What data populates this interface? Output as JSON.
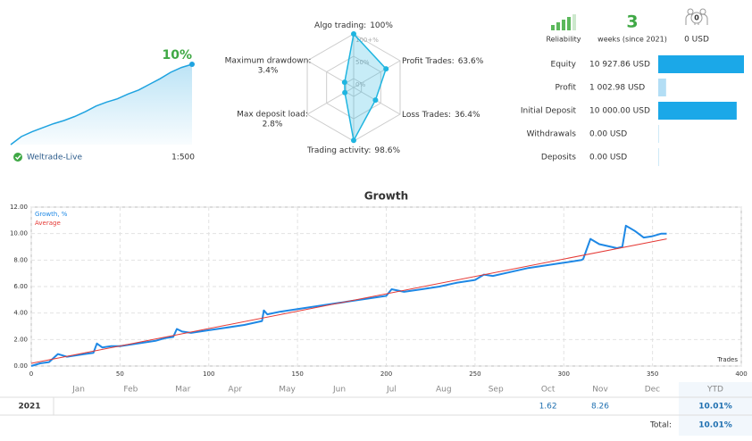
{
  "header": {
    "account": "Weltrade-Live",
    "leverage": "1:500",
    "reliability_label": "Reliability",
    "weeks": "3",
    "weeks_label": "weeks (since 2021)",
    "subscribers": "0",
    "subscribers_funds": "0 USD"
  },
  "chart_data": [
    {
      "type": "area",
      "end_label": "10%",
      "color": "#1fa3e0",
      "values": [
        0,
        1.0,
        1.6,
        2.1,
        2.6,
        3.0,
        3.5,
        4.1,
        4.8,
        5.3,
        5.7,
        6.3,
        6.8,
        7.5,
        8.2,
        9.0,
        9.6,
        10
      ]
    },
    {
      "type": "radar",
      "color": "#1fb5e0",
      "categories": [
        "Algo trading:",
        "Profit Trades:",
        "Loss Trades:",
        "Trading activity:",
        "Max deposit load:",
        "Maximum drawdown:"
      ],
      "values": [
        100,
        63.6,
        36.4,
        98.6,
        2.8,
        3.4
      ],
      "value_labels": [
        "100%",
        "63.6%",
        "36.4%",
        "98.6%",
        "2.8%",
        "3.4%"
      ],
      "rticks": [
        {
          "value": 0,
          "label": "0%"
        },
        {
          "value": 50,
          "label": "50%"
        },
        {
          "value": 100,
          "label": "100+%"
        }
      ]
    },
    {
      "type": "hbar",
      "categories": [
        "Equity",
        "Profit",
        "Initial Deposit",
        "Withdrawals",
        "Deposits"
      ],
      "values": [
        10927.86,
        1002.98,
        10000,
        0,
        0
      ],
      "value_labels": [
        "10 927.86 USD",
        "1 002.98 USD",
        "10 000.00 USD",
        "0.00 USD",
        "0.00 USD"
      ],
      "colors": [
        "#1ba8e8",
        "#b3def5",
        "#1ba8e8",
        "#cfe9f7",
        "#cfe9f7"
      ]
    },
    {
      "type": "line",
      "title": "Growth",
      "xlabel": "Trades",
      "grid": true,
      "x": [
        0,
        5,
        10,
        15,
        20,
        25,
        30,
        35,
        37,
        40,
        45,
        50,
        55,
        60,
        65,
        70,
        75,
        80,
        82,
        85,
        90,
        100,
        110,
        120,
        130,
        131,
        133,
        140,
        150,
        160,
        170,
        180,
        190,
        200,
        203,
        210,
        220,
        230,
        240,
        250,
        255,
        260,
        270,
        280,
        290,
        300,
        310,
        311,
        315,
        320,
        330,
        333,
        335,
        340,
        345,
        350,
        355,
        358
      ],
      "series": [
        {
          "name": "Growth, %",
          "color": "#1e88e5",
          "values": [
            0,
            0.2,
            0.3,
            0.9,
            0.7,
            0.8,
            0.9,
            1.0,
            1.7,
            1.4,
            1.5,
            1.5,
            1.6,
            1.7,
            1.8,
            1.9,
            2.1,
            2.2,
            2.8,
            2.6,
            2.5,
            2.7,
            2.9,
            3.1,
            3.4,
            4.2,
            3.9,
            4.1,
            4.3,
            4.5,
            4.7,
            4.9,
            5.1,
            5.3,
            5.8,
            5.6,
            5.8,
            6.0,
            6.3,
            6.5,
            6.9,
            6.8,
            7.1,
            7.4,
            7.6,
            7.8,
            8.0,
            8.1,
            9.6,
            9.2,
            8.9,
            9.0,
            10.6,
            10.2,
            9.7,
            9.8,
            10.0,
            10.0
          ]
        },
        {
          "name": "Average",
          "color": "#e53935",
          "x": [
            0,
            358
          ],
          "values": [
            0.2,
            9.6
          ]
        }
      ],
      "xlim": [
        0,
        400
      ],
      "xticks": [
        0,
        50,
        100,
        150,
        200,
        250,
        300,
        350,
        400
      ],
      "ylim": [
        0,
        12
      ],
      "yticks": [
        {
          "value": 0,
          "label": "0.00"
        },
        {
          "value": 2,
          "label": "2.00"
        },
        {
          "value": 4,
          "label": "4.00"
        },
        {
          "value": 6,
          "label": "6.00"
        },
        {
          "value": 8,
          "label": "8.00"
        },
        {
          "value": 10,
          "label": "10.00"
        },
        {
          "value": 12,
          "label": "12.00"
        }
      ]
    }
  ],
  "table": {
    "months": [
      "Jan",
      "Feb",
      "Mar",
      "Apr",
      "May",
      "Jun",
      "Jul",
      "Aug",
      "Sep",
      "Oct",
      "Nov",
      "Dec"
    ],
    "ytd_header": "YTD",
    "rows": [
      {
        "year": "2021",
        "cells": [
          null,
          null,
          null,
          null,
          null,
          null,
          null,
          null,
          null,
          1.62,
          8.26,
          null
        ],
        "ytd": "10.01%"
      }
    ],
    "total_label": "Total:",
    "total": "10.01%"
  }
}
